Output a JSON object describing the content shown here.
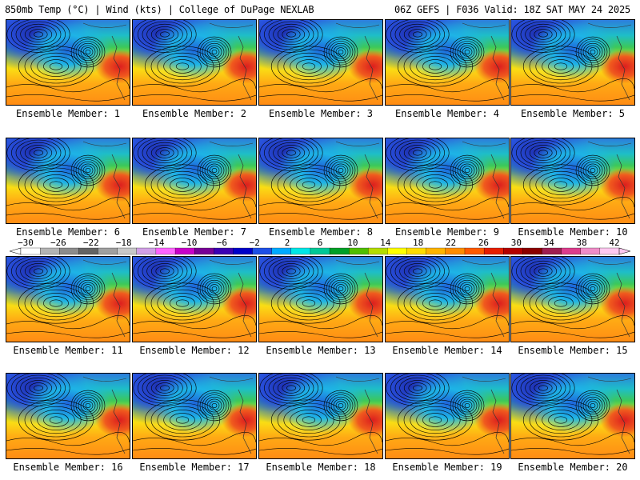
{
  "header": {
    "left": "850mb Temp (°C) | Wind (kts) | College of DuPage NEXLAB",
    "right": "06Z GEFS | F036 Valid: 18Z SAT MAY 24 2025"
  },
  "members": [
    "Ensemble Member: 1",
    "Ensemble Member: 2",
    "Ensemble Member: 3",
    "Ensemble Member: 4",
    "Ensemble Member: 5",
    "Ensemble Member: 6",
    "Ensemble Member: 7",
    "Ensemble Member: 8",
    "Ensemble Member: 9",
    "Ensemble Member: 10",
    "Ensemble Member: 11",
    "Ensemble Member: 12",
    "Ensemble Member: 13",
    "Ensemble Member: 14",
    "Ensemble Member: 15",
    "Ensemble Member: 16",
    "Ensemble Member: 17",
    "Ensemble Member: 18",
    "Ensemble Member: 19",
    "Ensemble Member: 20"
  ],
  "colorbar": {
    "labels": [
      "−30",
      "−26",
      "−22",
      "−18",
      "−14",
      "−10",
      "−6",
      "−2",
      "2",
      "6",
      "10",
      "14",
      "18",
      "22",
      "26",
      "30",
      "34",
      "38",
      "42"
    ],
    "colors": [
      "#ffffff",
      "#b4b4b4",
      "#8c8c8c",
      "#646464",
      "#a0a0a0",
      "#c8c8c8",
      "#d2a0e6",
      "#ff64ff",
      "#c800c8",
      "#780096",
      "#3c00b4",
      "#0000c8",
      "#1e50e6",
      "#00aaff",
      "#00e6e6",
      "#00c896",
      "#00a028",
      "#50be00",
      "#b4dc00",
      "#ffff00",
      "#ffdc00",
      "#ffb400",
      "#ff8c00",
      "#ff5a00",
      "#e61e00",
      "#b40000",
      "#8c0000",
      "#a01e50",
      "#dc3c8c",
      "#f08cc8",
      "#ffc8f0"
    ]
  }
}
